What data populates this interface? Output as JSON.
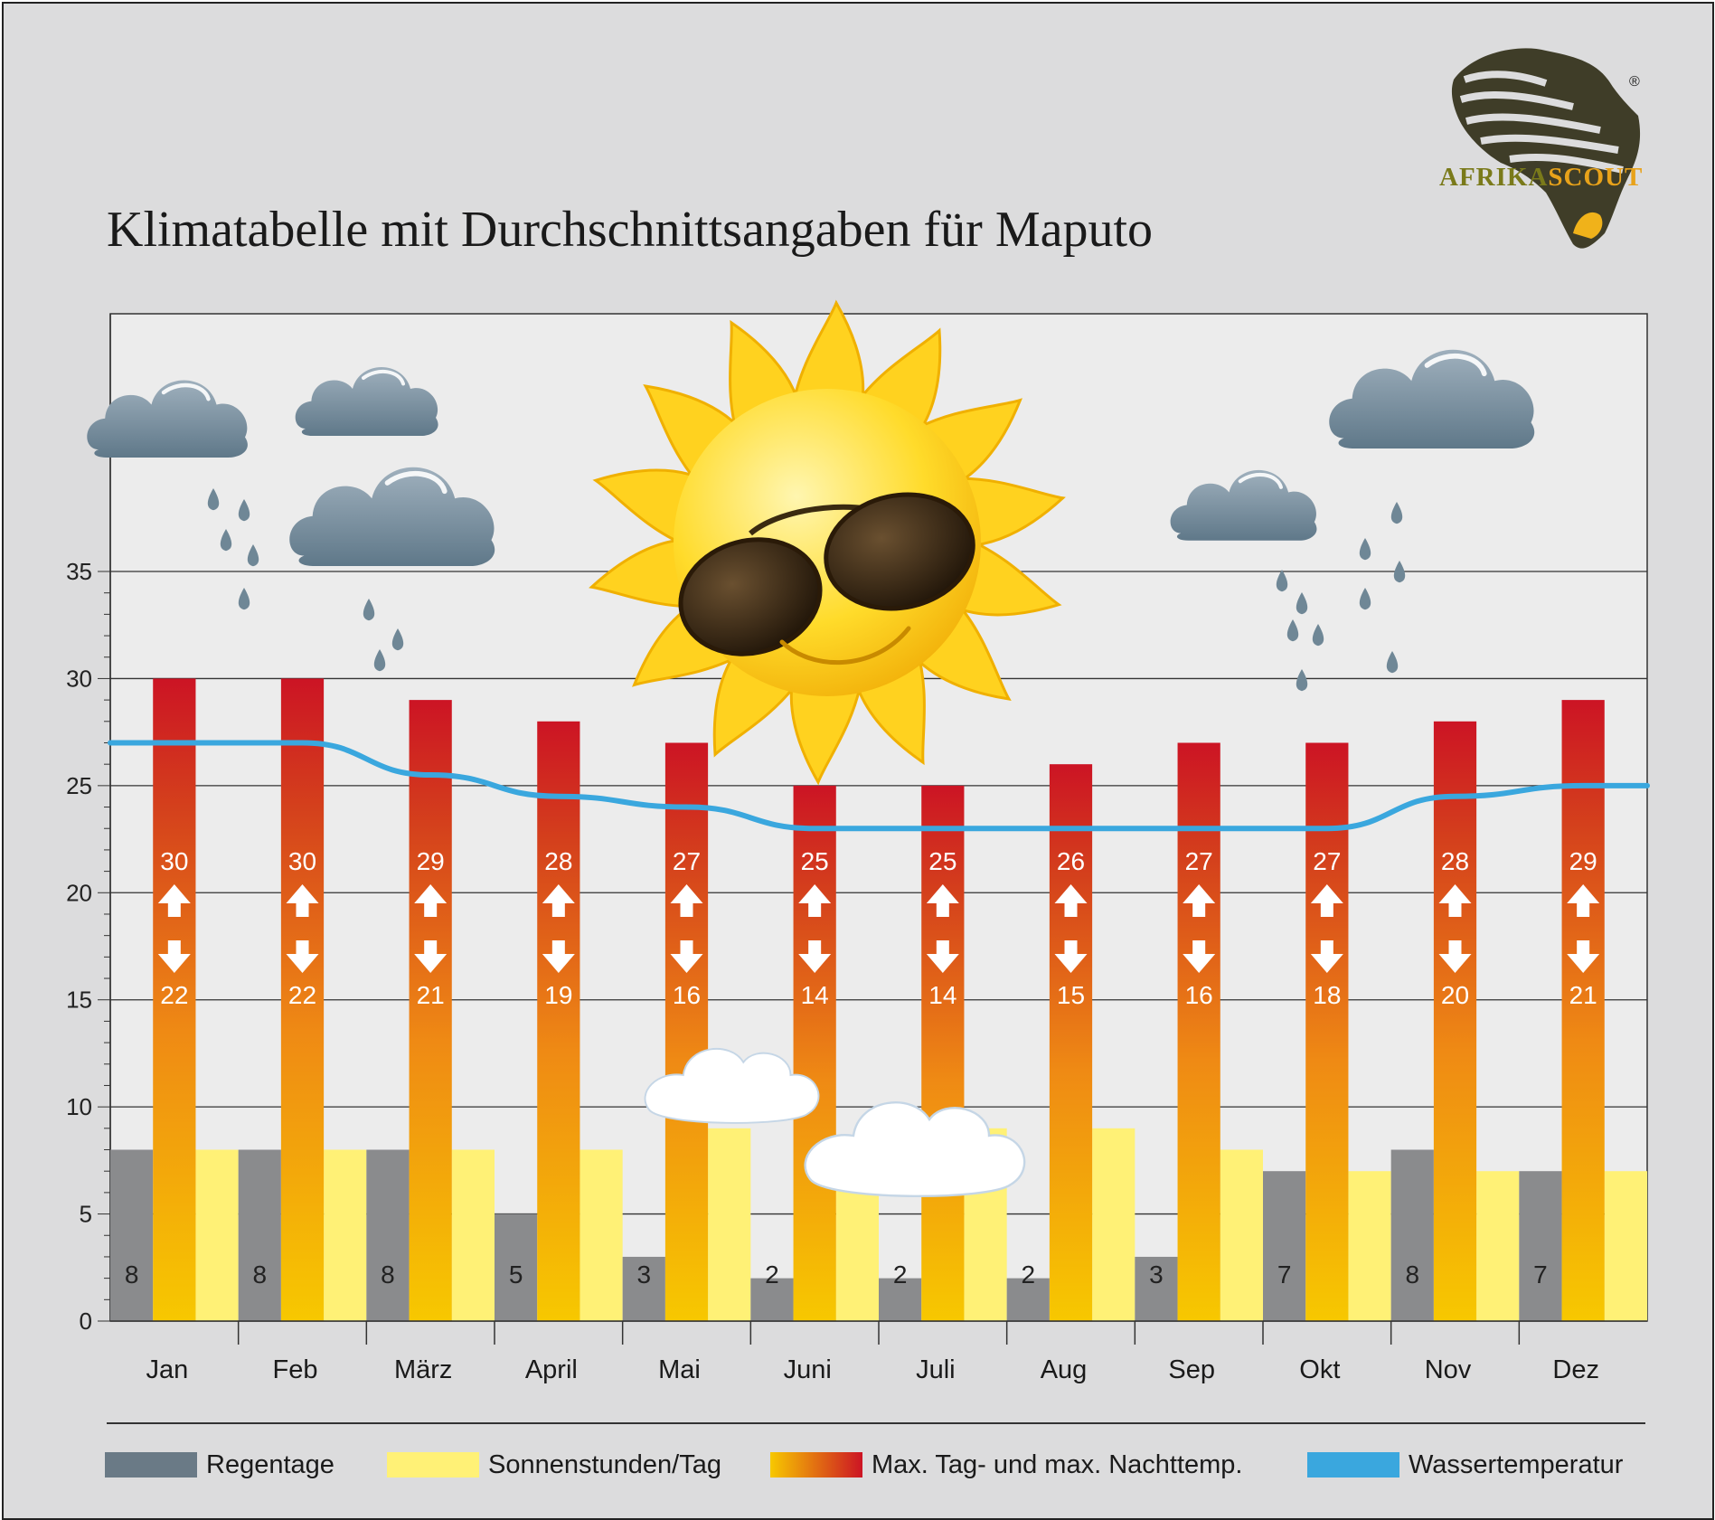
{
  "title": "Klimatabelle mit Durchschnittsangaben für Maputo",
  "logo": {
    "part1": "AFRIKA",
    "part2": "SCOUT",
    "registered": "®",
    "color1": "#7a7a1a",
    "color2": "#e8a21a"
  },
  "legend": [
    {
      "label": "Regentage",
      "color": "#6a7a86"
    },
    {
      "label": "Sonnenstunden/Tag",
      "color": "#fff176"
    },
    {
      "label": "Max. Tag- und max. Nachttemp.",
      "color": "#f5b800",
      "color2": "#d01828"
    },
    {
      "label": "Wassertemperatur",
      "color": "#3aa7de"
    }
  ],
  "chart_data": {
    "type": "bar",
    "title": "Klimatabelle mit Durchschnittsangaben für Maputo",
    "categories": [
      "Jan",
      "Feb",
      "März",
      "April",
      "Mai",
      "Juni",
      "Juli",
      "Aug",
      "Sep",
      "Okt",
      "Nov",
      "Dez"
    ],
    "ylim": [
      0,
      35
    ],
    "yticks": [
      0,
      5,
      10,
      15,
      20,
      25,
      30,
      35
    ],
    "grid": true,
    "legend_position": "bottom",
    "series": [
      {
        "name": "Regentage",
        "type": "bar",
        "color": "#8a8b8d",
        "values": [
          8,
          8,
          8,
          5,
          3,
          2,
          2,
          2,
          3,
          7,
          8,
          7
        ]
      },
      {
        "name": "Sonnenstunden/Tag",
        "type": "bar",
        "color": "#fff176",
        "values": [
          8,
          8,
          8,
          8,
          9,
          7,
          9,
          9,
          8,
          7,
          7,
          7
        ]
      },
      {
        "name": "Max. Tag- und max. Nachttemp.",
        "type": "bar",
        "values": [
          30,
          30,
          29,
          28,
          27,
          25,
          25,
          26,
          27,
          27,
          28,
          29
        ]
      },
      {
        "name": "Nachttemp.",
        "values": [
          22,
          22,
          21,
          19,
          16,
          14,
          14,
          15,
          16,
          18,
          20,
          21
        ]
      },
      {
        "name": "Wassertemperatur",
        "type": "line",
        "color": "#3aa7de",
        "values": [
          27,
          27,
          25.5,
          24.5,
          24,
          23,
          23,
          23,
          23,
          23,
          24.5,
          25
        ]
      }
    ]
  }
}
